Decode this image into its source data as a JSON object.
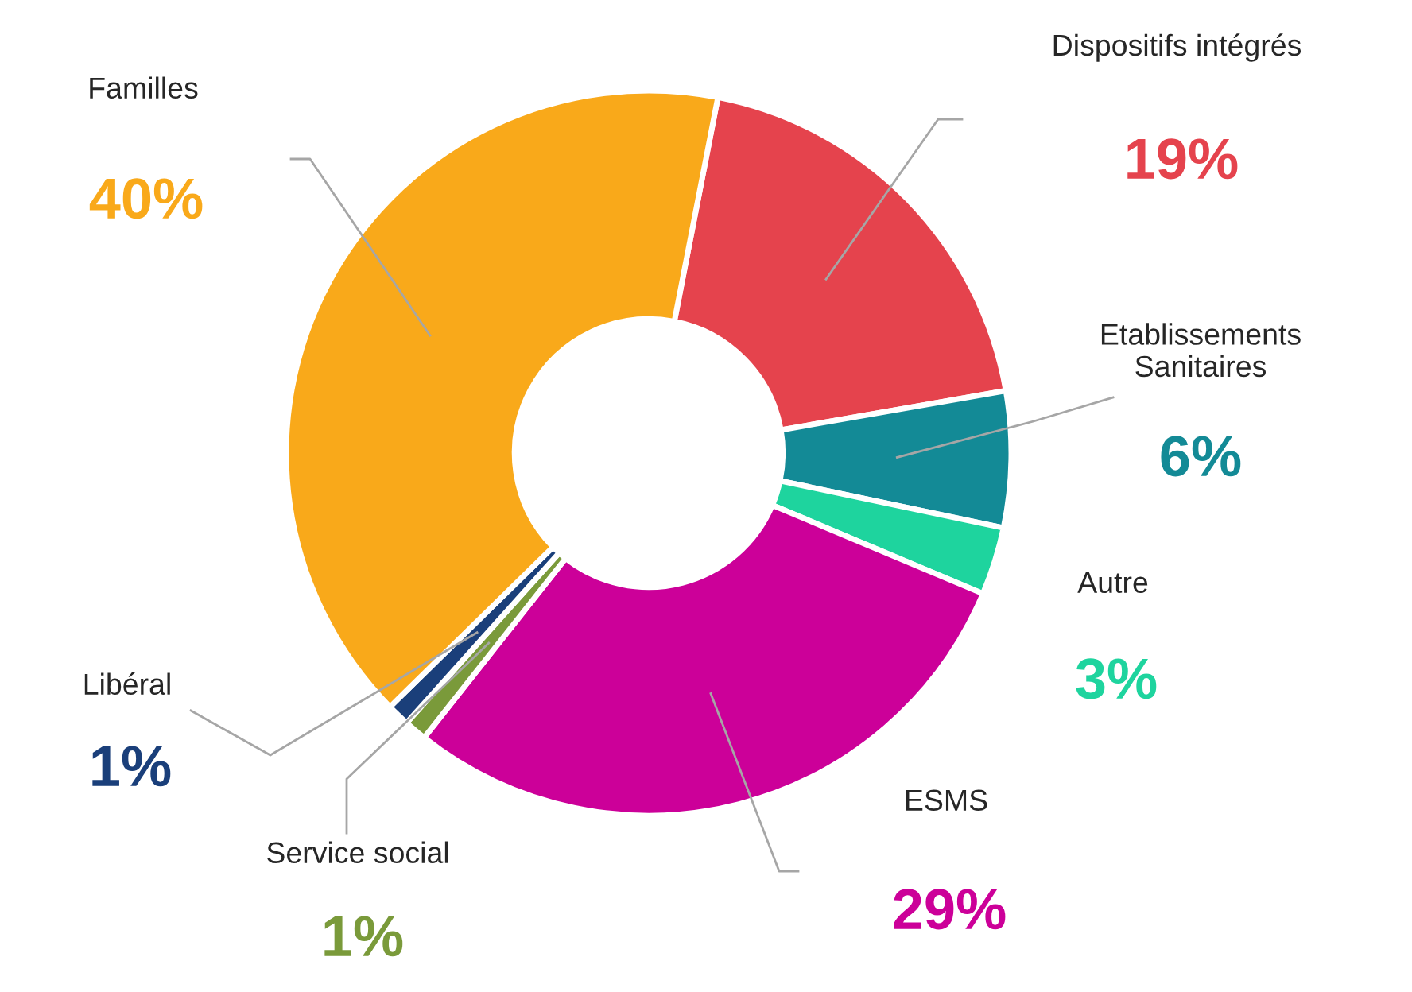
{
  "chart_data": {
    "type": "donut",
    "categories": [
      "Dispositifs intégrés",
      "Etablissements\nSanitaires",
      "Autre",
      "ESMS",
      "Service social",
      "Libéral",
      "Familles"
    ],
    "values": [
      19,
      6,
      3,
      29,
      1,
      1,
      40
    ],
    "colors": [
      "#e5434d",
      "#138a96",
      "#1ed49e",
      "#cc0099",
      "#7a9a3a",
      "#1a3f7a",
      "#f9a91a"
    ],
    "value_labels": [
      "19%",
      "6%",
      "3%",
      "29%",
      "1%",
      "1%",
      "40%"
    ],
    "legend": false
  }
}
